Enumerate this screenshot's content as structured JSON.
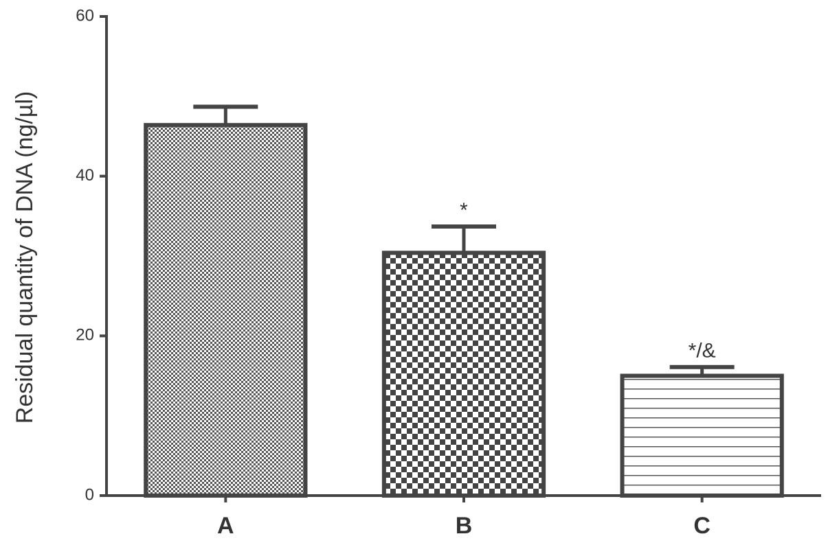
{
  "chart_data": {
    "type": "bar",
    "y_label": "Residual quantity of DNA (ng/µl)",
    "categories": [
      "A",
      "B",
      "C"
    ],
    "values": [
      46.4,
      30.4,
      15.0
    ],
    "errors": [
      2.3,
      3.3,
      1.1
    ],
    "annotations": [
      null,
      "*",
      "*/&"
    ],
    "patterns": [
      "dots",
      "checker",
      "hlines"
    ],
    "color": "#444444",
    "ylim": [
      0,
      60
    ],
    "yticks": [
      0,
      20,
      40,
      60
    ],
    "grid": false
  }
}
